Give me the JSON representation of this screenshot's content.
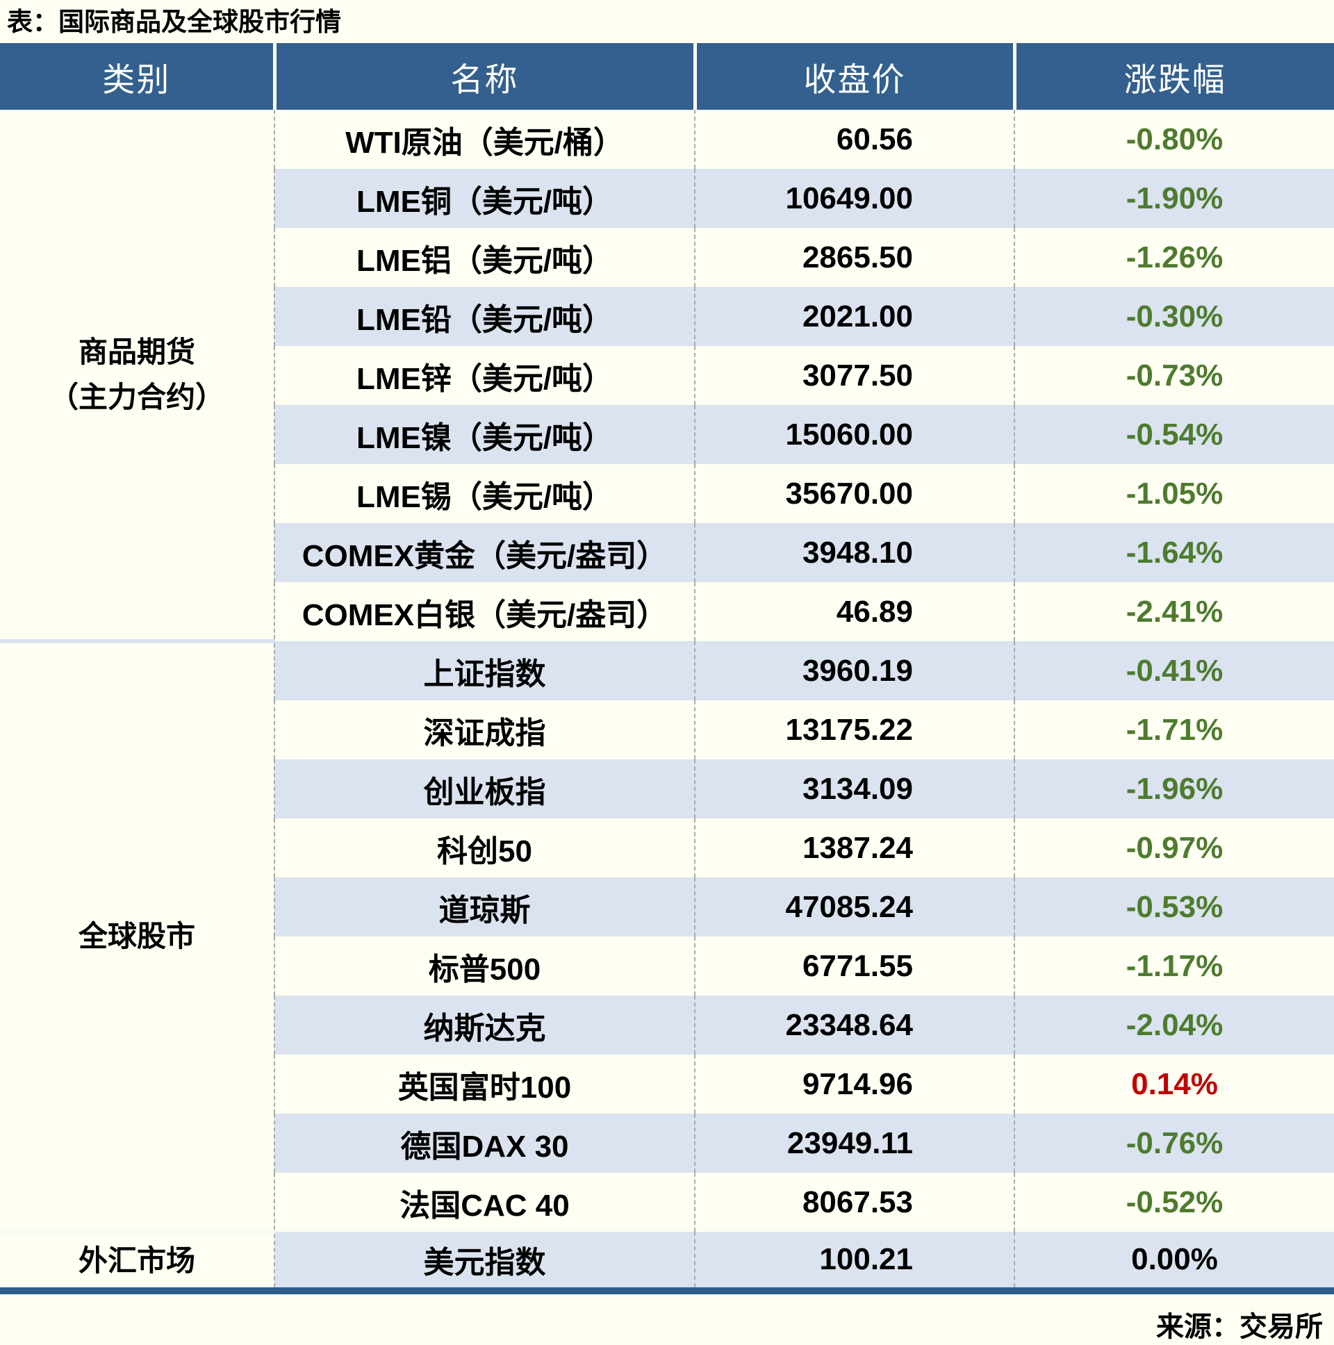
{
  "title": "表：国际商品及全球股市行情",
  "source": "来源：交易所",
  "colors": {
    "header_bg": "#33608E",
    "header_text": "#FFFFFF",
    "stripe_row": "#DAE3EF",
    "page_bg": "#FFFEF2",
    "down_green": "#4E7B2F",
    "up_red": "#C00000",
    "flat_black": "#000000",
    "bottom_bar": "#2E5C8C"
  },
  "table": {
    "headers": [
      "类别",
      "名称",
      "收盘价",
      "涨跌幅"
    ],
    "sections": [
      {
        "category_lines": [
          "商品期货",
          "（主力合约）"
        ],
        "rows": [
          {
            "name": "WTI原油（美元/桶）",
            "close": "60.56",
            "change": "-0.80%",
            "dir": "down"
          },
          {
            "name": "LME铜（美元/吨）",
            "close": "10649.00",
            "change": "-1.90%",
            "dir": "down"
          },
          {
            "name": "LME铝（美元/吨）",
            "close": "2865.50",
            "change": "-1.26%",
            "dir": "down"
          },
          {
            "name": "LME铅（美元/吨）",
            "close": "2021.00",
            "change": "-0.30%",
            "dir": "down"
          },
          {
            "name": "LME锌（美元/吨）",
            "close": "3077.50",
            "change": "-0.73%",
            "dir": "down"
          },
          {
            "name": "LME镍（美元/吨）",
            "close": "15060.00",
            "change": "-0.54%",
            "dir": "down"
          },
          {
            "name": "LME锡（美元/吨）",
            "close": "35670.00",
            "change": "-1.05%",
            "dir": "down"
          },
          {
            "name": "COMEX黄金（美元/盎司）",
            "close": "3948.10",
            "change": "-1.64%",
            "dir": "down"
          },
          {
            "name": "COMEX白银（美元/盎司）",
            "close": "46.89",
            "change": "-2.41%",
            "dir": "down"
          }
        ]
      },
      {
        "category_lines": [
          "全球股市"
        ],
        "rows": [
          {
            "name": "上证指数",
            "close": "3960.19",
            "change": "-0.41%",
            "dir": "down"
          },
          {
            "name": "深证成指",
            "close": "13175.22",
            "change": "-1.71%",
            "dir": "down"
          },
          {
            "name": "创业板指",
            "close": "3134.09",
            "change": "-1.96%",
            "dir": "down"
          },
          {
            "name": "科创50",
            "close": "1387.24",
            "change": "-0.97%",
            "dir": "down"
          },
          {
            "name": "道琼斯",
            "close": "47085.24",
            "change": "-0.53%",
            "dir": "down"
          },
          {
            "name": "标普500",
            "close": "6771.55",
            "change": "-1.17%",
            "dir": "down"
          },
          {
            "name": "纳斯达克",
            "close": "23348.64",
            "change": "-2.04%",
            "dir": "down"
          },
          {
            "name": "英国富时100",
            "close": "9714.96",
            "change": "0.14%",
            "dir": "up"
          },
          {
            "name": "德国DAX 30",
            "close": "23949.11",
            "change": "-0.76%",
            "dir": "down"
          },
          {
            "name": "法国CAC 40",
            "close": "8067.53",
            "change": "-0.52%",
            "dir": "down"
          }
        ]
      },
      {
        "category_lines": [
          "外汇市场"
        ],
        "rows": [
          {
            "name": "美元指数",
            "close": "100.21",
            "change": "0.00%",
            "dir": "flat"
          }
        ]
      }
    ]
  }
}
